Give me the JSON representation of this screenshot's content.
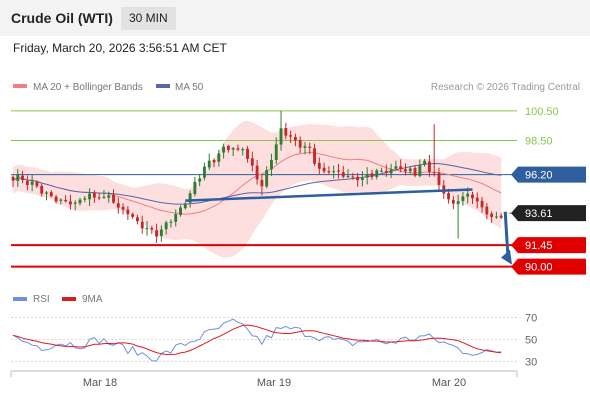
{
  "header": {
    "title": "Crude Oil (WTI)",
    "interval": "30 MIN",
    "timestamp": "Friday, March 20, 2026 3:56:51 AM CET"
  },
  "legend": {
    "ma20_bb": "MA 20 + Bollinger Bands",
    "ma50": "MA 50",
    "rsi": "RSI",
    "ma9": "9MA",
    "credit": "Research © 2026 Trading Central"
  },
  "colors": {
    "bb_fill": "#fdd7d7",
    "ma20": "#f07f7f",
    "ma50": "#5a64a8",
    "candle_up": "#2e7d32",
    "candle_down": "#c62828",
    "resistance": "#8bc34a",
    "support": "#e00000",
    "pivot": "#2e5e9e",
    "rsi_line": "#6f8fdc",
    "rsi_ma": "#d81f1f",
    "current_price": "#222222"
  },
  "chart_data": [
    {
      "type": "candlestick",
      "title": "Crude Oil (WTI)",
      "ylim": [
        88.9,
        101.5
      ],
      "x_labels": [
        "Mar 18",
        "Mar 19",
        "Mar 20"
      ],
      "levels": [
        {
          "value": 100.5,
          "label": "100.50",
          "kind": "resistance"
        },
        {
          "value": 98.5,
          "label": "98.50",
          "kind": "resistance"
        },
        {
          "value": 96.2,
          "label": "96.20",
          "kind": "pivot"
        },
        {
          "value": 93.61,
          "label": "93.61",
          "kind": "current"
        },
        {
          "value": 91.45,
          "label": "91.45",
          "kind": "support"
        },
        {
          "value": 90.0,
          "label": "90.00",
          "kind": "support"
        }
      ],
      "neckline": [
        {
          "i": 36,
          "price": 94.45
        },
        {
          "i": 96,
          "price": 95.2
        }
      ],
      "projection": {
        "from_price": 93.7,
        "to_price": 90.0
      },
      "anchors_close": [
        [
          0,
          96.1
        ],
        [
          4,
          95.6
        ],
        [
          8,
          94.6
        ],
        [
          12,
          94.2
        ],
        [
          16,
          94.8
        ],
        [
          20,
          94.6
        ],
        [
          24,
          93.5
        ],
        [
          28,
          92.4
        ],
        [
          30,
          92.2
        ],
        [
          32,
          92.8
        ],
        [
          36,
          94.4
        ],
        [
          40,
          96.6
        ],
        [
          44,
          98.0
        ],
        [
          48,
          97.9
        ],
        [
          50,
          96.8
        ],
        [
          52,
          95.3
        ],
        [
          54,
          97.3
        ],
        [
          56,
          99.3
        ],
        [
          60,
          98.2
        ],
        [
          62,
          97.9
        ],
        [
          64,
          96.4
        ],
        [
          68,
          96.3
        ],
        [
          72,
          95.8
        ],
        [
          76,
          96.4
        ],
        [
          80,
          96.6
        ],
        [
          84,
          96.4
        ],
        [
          86,
          97.2
        ],
        [
          88,
          96.1
        ],
        [
          90,
          95.0
        ],
        [
          92,
          94.2
        ],
        [
          94,
          94.8
        ],
        [
          96,
          94.6
        ],
        [
          98,
          93.8
        ],
        [
          100,
          93.2
        ],
        [
          102,
          93.6
        ]
      ],
      "rsi_ylim": [
        24,
        75
      ],
      "rsi_ticks": [
        70,
        50,
        30
      ],
      "rsi_anchors": [
        [
          0,
          52
        ],
        [
          3,
          47
        ],
        [
          6,
          43
        ],
        [
          10,
          47
        ],
        [
          14,
          45
        ],
        [
          18,
          50
        ],
        [
          22,
          44
        ],
        [
          26,
          38
        ],
        [
          30,
          33
        ],
        [
          34,
          42
        ],
        [
          38,
          50
        ],
        [
          42,
          58
        ],
        [
          46,
          66
        ],
        [
          50,
          55
        ],
        [
          52,
          47
        ],
        [
          55,
          58
        ],
        [
          58,
          60
        ],
        [
          62,
          55
        ],
        [
          66,
          50
        ],
        [
          70,
          46
        ],
        [
          74,
          49
        ],
        [
          78,
          47
        ],
        [
          82,
          50
        ],
        [
          86,
          53
        ],
        [
          90,
          47
        ],
        [
          94,
          40
        ],
        [
          98,
          37
        ],
        [
          102,
          40
        ]
      ]
    }
  ]
}
